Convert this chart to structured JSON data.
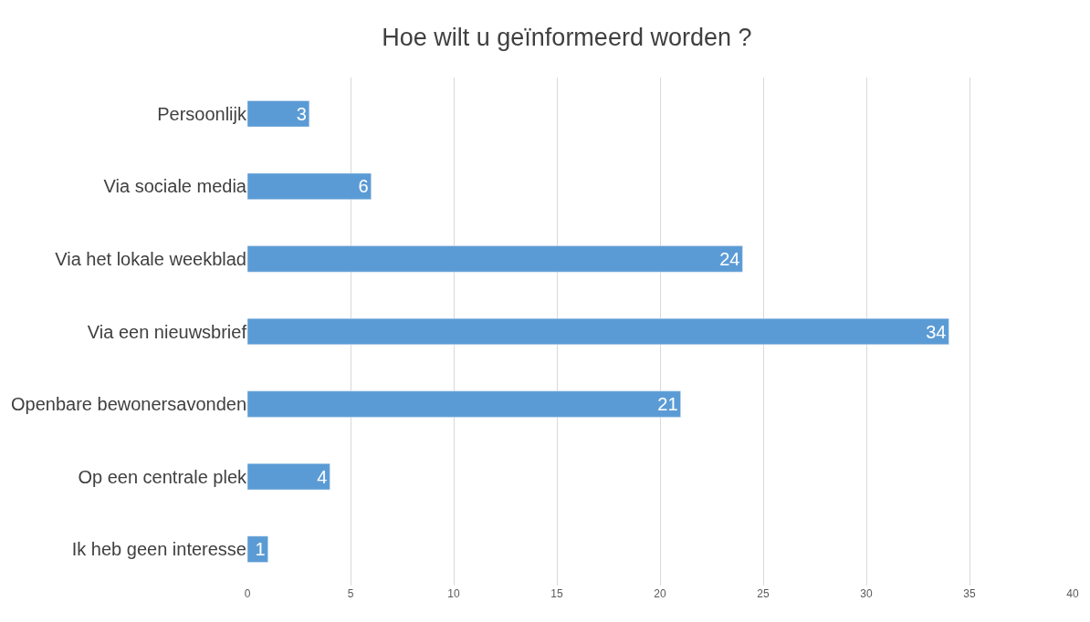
{
  "chart_data": {
    "type": "bar",
    "orientation": "horizontal",
    "title": "Hoe wilt u geïnformeerd worden ?",
    "categories": [
      "Persoonlijk",
      "Via sociale media",
      "Via het lokale weekblad",
      "Via een nieuwsbrief",
      "Openbare bewonersavonden",
      "Op een centrale plek",
      "Ik heb geen interesse"
    ],
    "values": [
      3,
      6,
      24,
      34,
      21,
      4,
      1
    ],
    "color": "#5b9bd5",
    "xlim": [
      0,
      40
    ],
    "xticks": [
      0,
      5,
      10,
      15,
      20,
      25,
      30,
      35,
      40
    ],
    "grid": "x",
    "data_labels": true
  }
}
